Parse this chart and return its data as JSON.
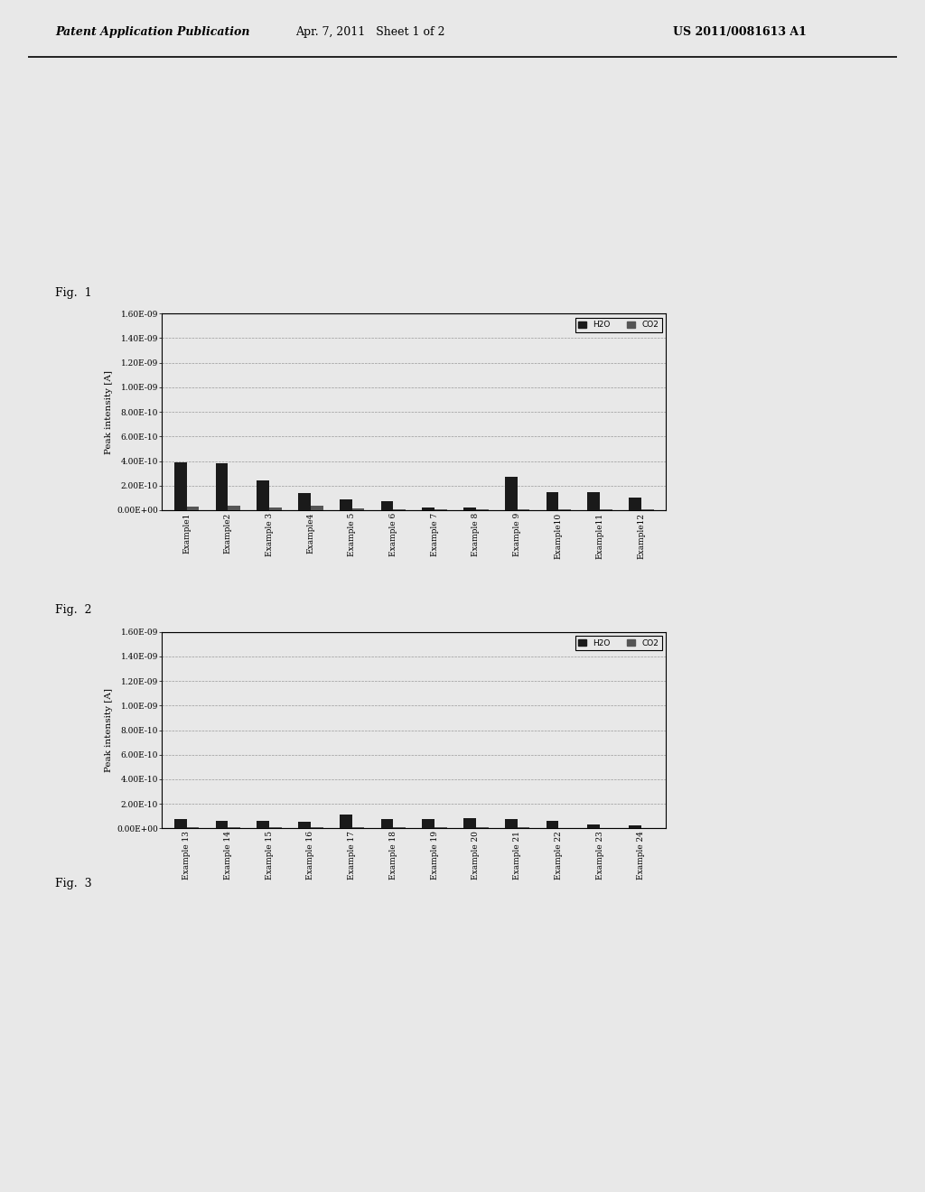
{
  "fig1": {
    "categories": [
      "Example1",
      "Example2",
      "Example 3",
      "Example4",
      "Example 5",
      "Example 6",
      "Example 7",
      "Example 8",
      "Example 9",
      "Example10",
      "Example11",
      "Example12"
    ],
    "H2O": [
      3.9e-10,
      3.8e-10,
      2.4e-10,
      1.4e-10,
      8.5e-11,
      7.5e-11,
      2.5e-11,
      2e-11,
      2.7e-10,
      1.5e-10,
      1.5e-10,
      1e-10
    ],
    "CO2": [
      3e-11,
      4e-11,
      2e-11,
      3.5e-11,
      1.5e-11,
      1e-11,
      5e-12,
      5e-12,
      5e-12,
      1e-11,
      5e-12,
      5e-12
    ],
    "ylabel": "Peak intensity [A]",
    "ylim": [
      0,
      1.6e-09
    ],
    "yticks": [
      0,
      2e-10,
      4e-10,
      6e-10,
      8e-10,
      1e-09,
      1.2e-09,
      1.4e-09,
      1.6e-09
    ],
    "ytick_labels": [
      "0.00E+00",
      "2.00E-10",
      "4.00E-10",
      "6.00E-10",
      "8.00E-10",
      "1.00E-09",
      "1.20E-09",
      "1.40E-09",
      "1.60E-09"
    ]
  },
  "fig2": {
    "categories": [
      "Example 13",
      "Example 14",
      "Example 15",
      "Example 16",
      "Example 17",
      "Example 18",
      "Example 19",
      "Example 20",
      "Example 21",
      "Example 22",
      "Example 23",
      "Example 24"
    ],
    "H2O": [
      8e-11,
      6.5e-11,
      6e-11,
      5.5e-11,
      1.1e-10,
      7.5e-11,
      7.5e-11,
      8.5e-11,
      7.5e-11,
      6e-11,
      3e-11,
      2.5e-11
    ],
    "CO2": [
      1e-11,
      8e-12,
      8e-12,
      8e-12,
      1.2e-11,
      8e-12,
      8e-12,
      1e-11,
      8e-12,
      5e-12,
      5e-12,
      5e-12
    ],
    "ylabel": "Peak intensity [A]",
    "ylim": [
      0,
      1.6e-09
    ],
    "yticks": [
      0,
      2e-10,
      4e-10,
      6e-10,
      8e-10,
      1e-09,
      1.2e-09,
      1.4e-09,
      1.6e-09
    ],
    "ytick_labels": [
      "0.00E+00",
      "2.00E-10",
      "4.00E-10",
      "6.00E-10",
      "8.00E-10",
      "1.00E-09",
      "1.20E-09",
      "1.40E-09",
      "1.60E-09"
    ]
  },
  "header_left": "Patent Application Publication",
  "header_date": "Apr. 7, 2011   Sheet 1 of 2",
  "header_right": "US 2011/0081613 A1",
  "fig1_label": "Fig.  1",
  "fig2_label": "Fig.  2",
  "fig3_label": "Fig.  3",
  "h2o_color": "#1a1a1a",
  "co2_color": "#555555",
  "bar_width": 0.3,
  "background_color": "#e8e8e8",
  "grid_color": "#999999",
  "font_size_tick": 6.5,
  "font_size_ylabel": 7.5,
  "font_size_header": 9,
  "font_size_label": 9
}
